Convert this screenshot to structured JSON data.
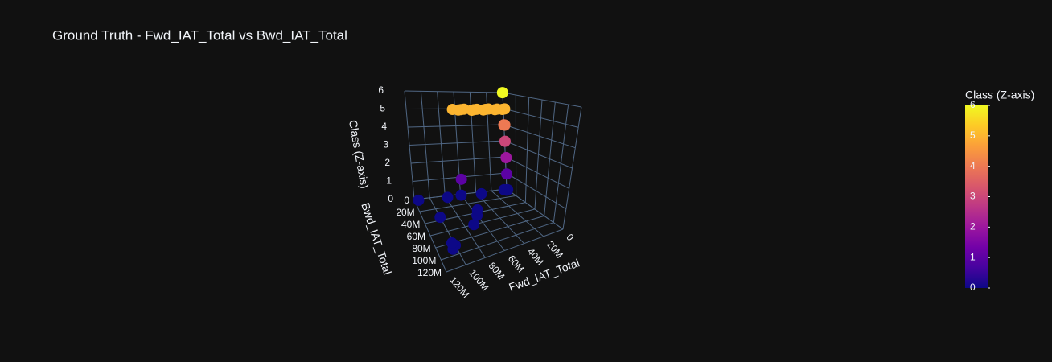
{
  "chart_data": {
    "type": "scatter3d",
    "title": "Ground Truth - Fwd_IAT_Total vs Bwd_IAT_Total",
    "xlabel": "Fwd_IAT_Total",
    "ylabel": "Bwd_IAT_Total",
    "zlabel": "Class (Z-axis)",
    "colorbar_title": "Class (Z-axis)",
    "colorscale": [
      "#0d0887",
      "#46039f",
      "#7201a8",
      "#9c179e",
      "#bd3786",
      "#d8576b",
      "#ed7953",
      "#fb9f3a",
      "#fdca26",
      "#f0f921"
    ],
    "xlim": [
      0,
      120000000
    ],
    "ylim": [
      0,
      120000000
    ],
    "zlim": [
      0,
      6
    ],
    "xticks": [
      0,
      {
        "value": 20000000,
        "label": "20M"
      },
      {
        "value": 40000000,
        "label": "40M"
      },
      {
        "value": 60000000,
        "label": "60M"
      },
      {
        "value": 80000000,
        "label": "80M"
      },
      {
        "value": 100000000,
        "label": "100M"
      },
      {
        "value": 120000000,
        "label": "120M"
      }
    ],
    "yticks": [
      0,
      {
        "value": 20000000,
        "label": "20M"
      },
      {
        "value": 40000000,
        "label": "40M"
      },
      {
        "value": 60000000,
        "label": "60M"
      },
      {
        "value": 80000000,
        "label": "80M"
      },
      {
        "value": 100000000,
        "label": "100M"
      },
      {
        "value": 120000000,
        "label": "120M"
      }
    ],
    "zticks": [
      0,
      1,
      2,
      3,
      4,
      5,
      6
    ],
    "x": [
      1000000,
      0,
      5000000,
      10000000,
      15000000,
      20000000,
      25000000,
      30000000,
      35000000,
      40000000,
      45000000,
      50000000,
      55000000,
      60000000,
      65000000,
      500000,
      1000000,
      1000000,
      1000000,
      1000000,
      60000000,
      0,
      2000000,
      4000000,
      115000000,
      78000000,
      60000000,
      35000000,
      100000000,
      100000000,
      104000000,
      102000000,
      70000000,
      60000000,
      55000000
    ],
    "y": [
      1000000,
      2000000,
      5000000,
      3000000,
      6000000,
      2000000,
      4000000,
      7000000,
      3000000,
      5000000,
      8000000,
      2000000,
      4000000,
      6000000,
      3000000,
      2000000,
      1000000,
      2000000,
      3000000,
      3000000,
      5000000,
      2000000,
      3000000,
      1000000,
      2000000,
      3000000,
      2000000,
      4000000,
      35000000,
      85000000,
      90000000,
      80000000,
      60000000,
      45000000,
      35000000
    ],
    "z": [
      6,
      5,
      5,
      5,
      5,
      5,
      5,
      5,
      5,
      5,
      5,
      5,
      5,
      5,
      5,
      4,
      4,
      3,
      2,
      1,
      1,
      0,
      0,
      0,
      0,
      0,
      0,
      0,
      0,
      0,
      0,
      0,
      0,
      0,
      0
    ]
  }
}
